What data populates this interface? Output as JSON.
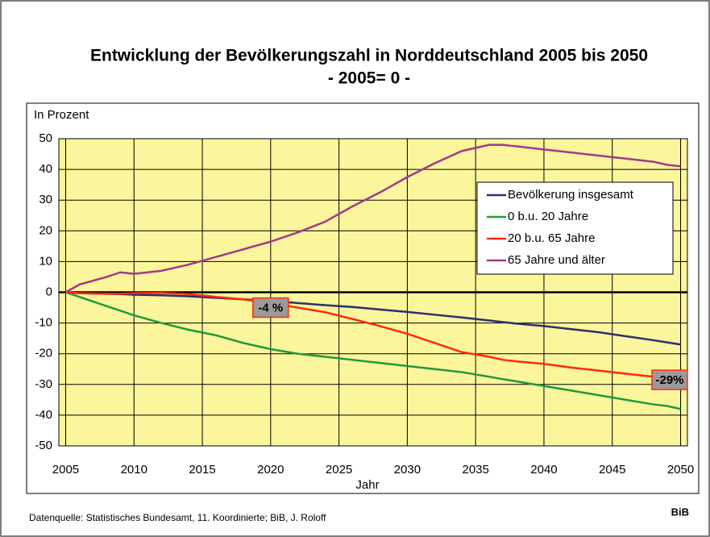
{
  "chart_data": {
    "type": "line",
    "title": "Entwicklung der Bevölkerungszahl in Norddeutschland 2005 bis 2050",
    "subtitle": "- 2005= 0 -",
    "y_axis_label": "In Prozent",
    "x_axis_label": "Jahr",
    "source": "Datenquelle: Statistisches Bundesamt, 11. Koordinierte; BiB, J. Roloff",
    "logo_text": "BiB",
    "x": [
      2005,
      2006,
      2008,
      2009,
      2010,
      2012,
      2014,
      2016,
      2018,
      2020,
      2022,
      2024,
      2026,
      2028,
      2030,
      2032,
      2034,
      2036,
      2037,
      2038,
      2040,
      2042,
      2044,
      2046,
      2048,
      2049,
      2050
    ],
    "series": [
      {
        "name": "Bevölkerung insgesamt",
        "color": "#2e2e6e",
        "values": [
          0,
          -0.3,
          -0.5,
          -0.6,
          -0.8,
          -1,
          -1.3,
          -1.8,
          -2.3,
          -2.8,
          -3.5,
          -4.2,
          -4.8,
          -5.6,
          -6.4,
          -7.3,
          -8.2,
          -9.2,
          -9.7,
          -10.2,
          -11,
          -12,
          -13,
          -14.3,
          -15.6,
          -16.3,
          -17
        ]
      },
      {
        "name": "0 b.u. 20 Jahre",
        "color": "#1f9a3a",
        "values": [
          0,
          -1.5,
          -4.5,
          -6,
          -7.5,
          -10,
          -12.2,
          -14,
          -16.5,
          -18.5,
          -20,
          -21,
          -22,
          -23,
          -24,
          -25,
          -26,
          -27.5,
          -28.3,
          -29,
          -30.5,
          -32,
          -33.5,
          -35,
          -36.5,
          -37,
          -38
        ]
      },
      {
        "name": "20 b.u. 65 Jahre",
        "color": "#ff2a0a",
        "values": [
          0,
          -0.3,
          -0.5,
          -0.5,
          -0.3,
          -0.2,
          -0.6,
          -1.5,
          -2.3,
          -3.5,
          -5,
          -6.5,
          -8.7,
          -11,
          -13.5,
          -16.5,
          -19.5,
          -21,
          -22,
          -22.5,
          -23.3,
          -24.5,
          -25.5,
          -26.5,
          -27.5,
          -28,
          -28.5
        ]
      },
      {
        "name": "65 Jahre und älter",
        "color": "#a03a8a",
        "values": [
          0,
          2.5,
          5,
          6.5,
          6,
          7,
          9,
          11.5,
          14,
          16.5,
          19.5,
          23,
          28,
          32.5,
          37.5,
          42,
          46,
          48,
          48,
          47.5,
          46.5,
          45.5,
          44.5,
          43.5,
          42.5,
          41.5,
          41
        ]
      }
    ],
    "annotations": [
      {
        "text": "-4 %",
        "x": 2020,
        "y": -5
      },
      {
        "text": "-29%",
        "x": 2050,
        "y": -28.5
      }
    ],
    "xlim": [
      2004.5,
      2050.5
    ],
    "xticks": [
      2005,
      2010,
      2015,
      2020,
      2025,
      2030,
      2035,
      2040,
      2045,
      2050
    ],
    "ylim": [
      -50,
      50
    ],
    "yticks": [
      -50,
      -40,
      -30,
      -20,
      -10,
      0,
      10,
      20,
      30,
      40,
      50
    ],
    "grid": true,
    "legend": "upper right",
    "plot_background": "#fbf59c"
  }
}
